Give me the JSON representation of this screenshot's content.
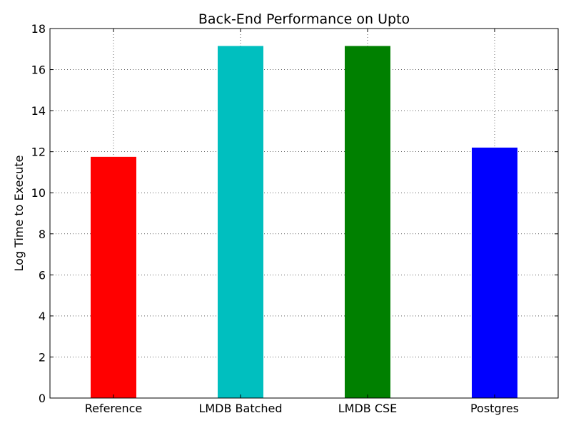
{
  "chart_data": {
    "type": "bar",
    "title": "Back-End Performance on  Upto",
    "xlabel": "",
    "ylabel": "Log Time to Execute",
    "categories": [
      "Reference",
      "LMDB Batched",
      "LMDB CSE",
      "Postgres"
    ],
    "values": [
      11.75,
      17.15,
      17.15,
      12.2
    ],
    "colors": [
      "#ff0000",
      "#00bfbf",
      "#008000",
      "#0000ff"
    ],
    "ylim": [
      0,
      18
    ],
    "yticks": [
      0,
      2,
      4,
      6,
      8,
      10,
      12,
      14,
      16,
      18
    ],
    "ytick_labels": [
      "0",
      "2",
      "4",
      "6",
      "8",
      "10",
      "12",
      "14",
      "16",
      "18"
    ],
    "grid": true,
    "legend": "none"
  }
}
